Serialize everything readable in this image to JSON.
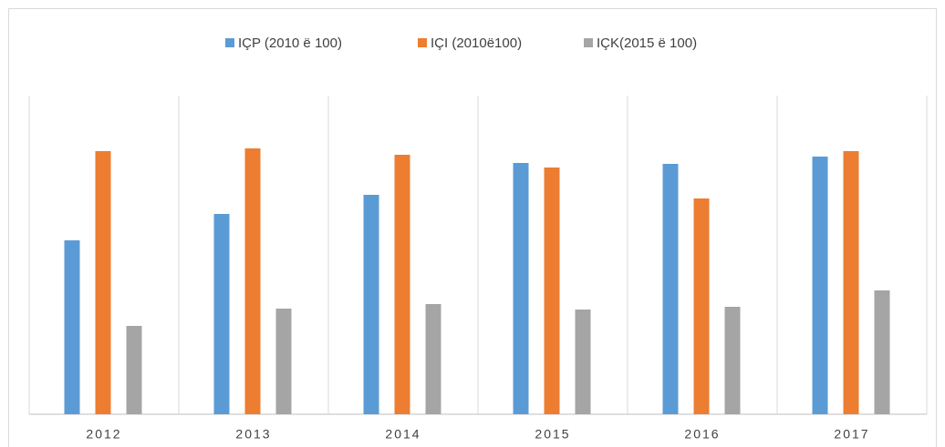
{
  "chart_data": {
    "type": "bar",
    "categories": [
      "2012",
      "2013",
      "2014",
      "2015",
      "2016",
      "2017"
    ],
    "series": [
      {
        "name": "IÇP (2010 ë 100)",
        "color": "#5b9bd5",
        "values": [
          191,
          220,
          241,
          276,
          275,
          283
        ]
      },
      {
        "name": "IÇI (2010ë100)",
        "color": "#ed7d31",
        "values": [
          289,
          292,
          285,
          271,
          237,
          289
        ]
      },
      {
        "name": "IÇK(2015 ë 100)",
        "color": "#a5a5a5",
        "values": [
          97,
          116,
          121,
          115,
          118,
          136
        ]
      }
    ],
    "ylim": [
      0,
      350
    ],
    "legend": "top"
  }
}
